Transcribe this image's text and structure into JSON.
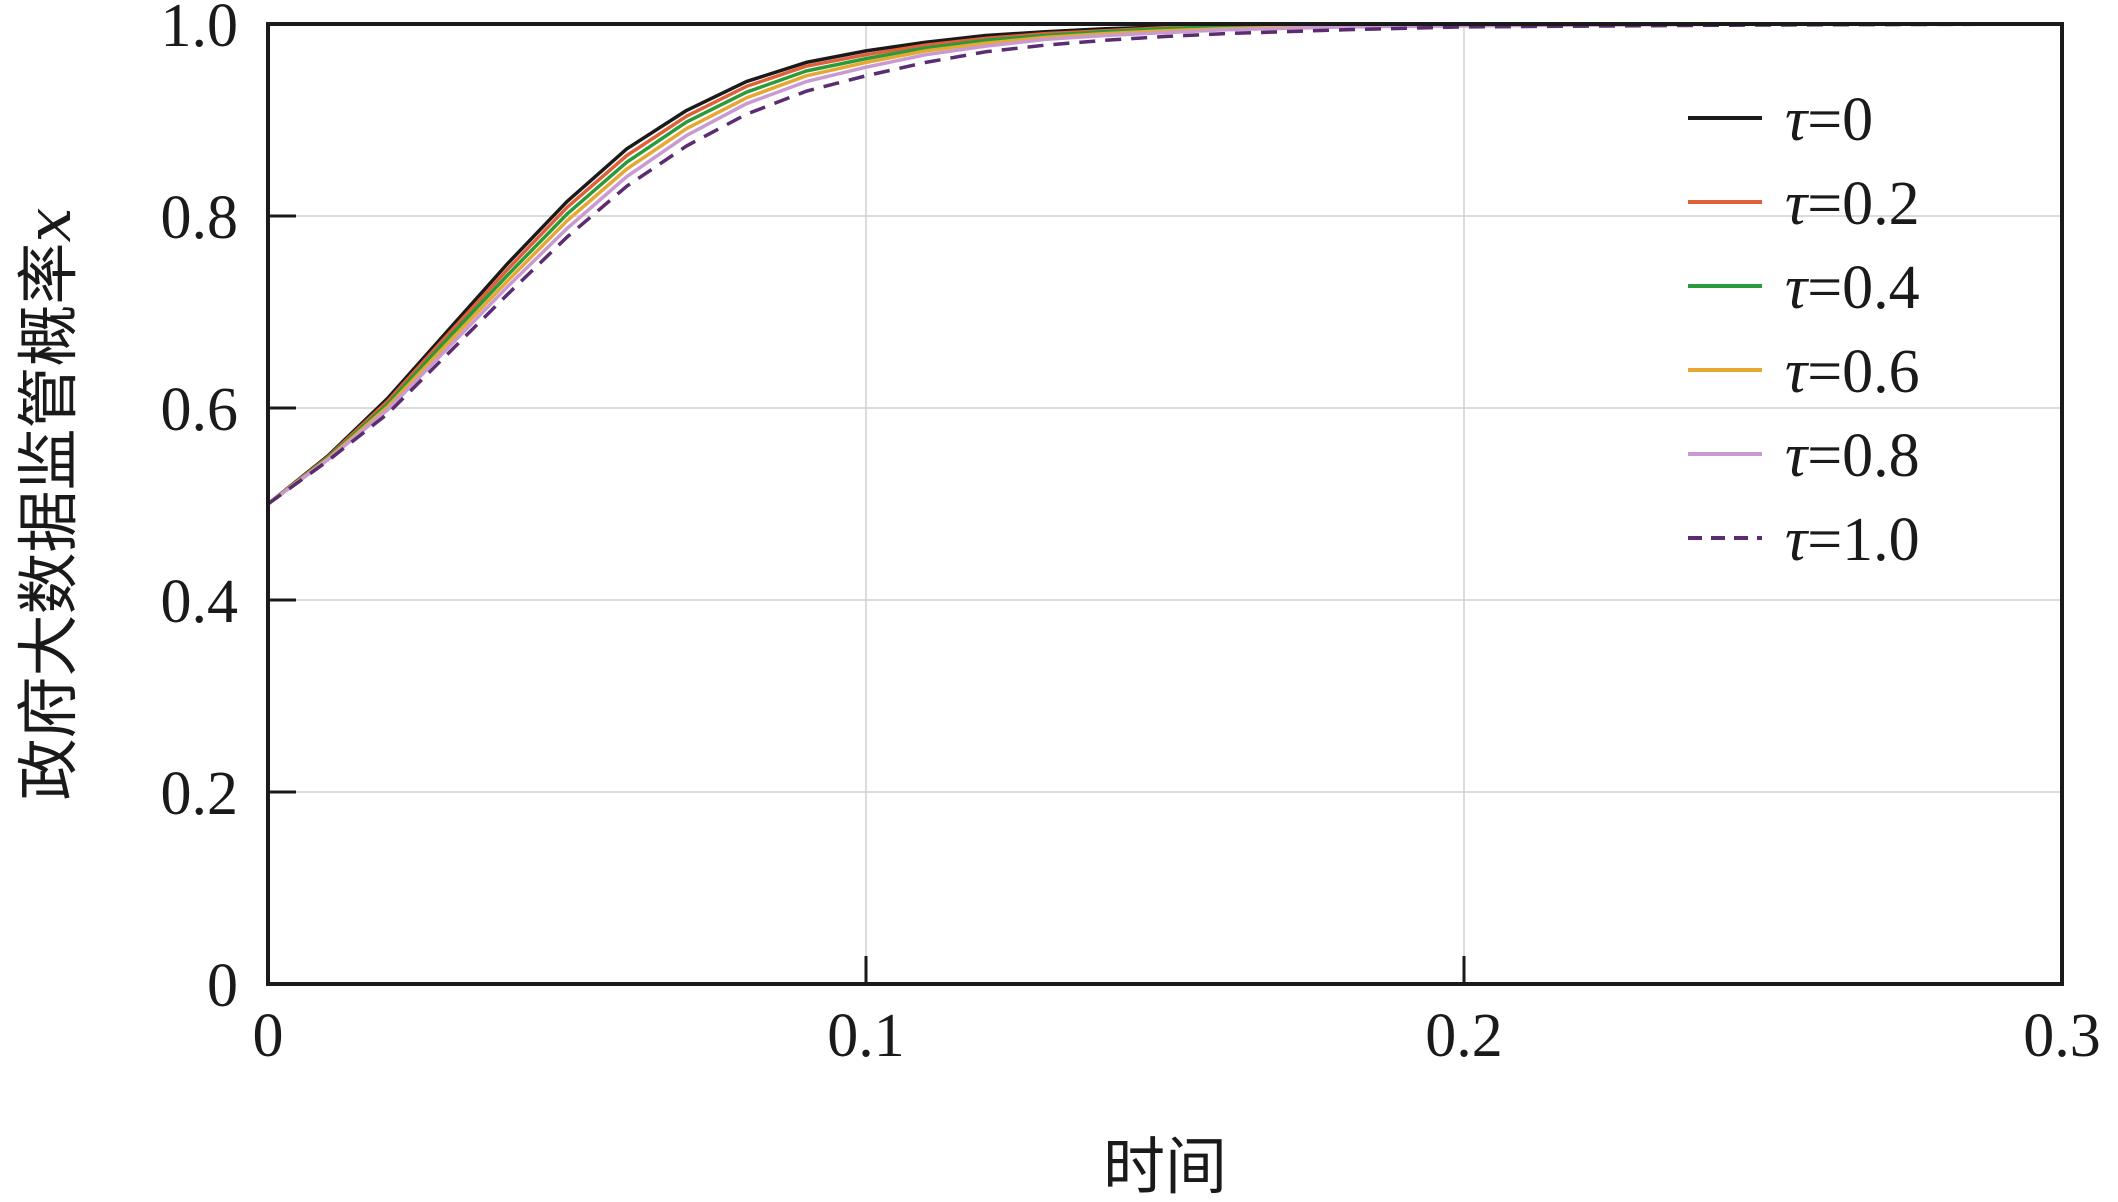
{
  "chart_data": {
    "type": "line",
    "title": "",
    "xlabel": "时间",
    "ylabel": "政府大数据监管概率",
    "ylabel_var": "x",
    "xlim": [
      0,
      0.3
    ],
    "ylim": [
      0,
      1.0
    ],
    "x_ticks": [
      0,
      0.1,
      0.2,
      0.3
    ],
    "x_tick_labels": [
      "0",
      "0.1",
      "0.2",
      "0.3"
    ],
    "y_ticks": [
      0,
      0.2,
      0.4,
      0.6,
      0.8,
      1.0
    ],
    "y_tick_labels": [
      "0",
      "0.2",
      "0.4",
      "0.6",
      "0.8",
      "1.0"
    ],
    "grid": true,
    "legend_position": "top-right",
    "x": [
      0,
      0.01,
      0.02,
      0.03,
      0.04,
      0.05,
      0.06,
      0.07,
      0.08,
      0.09,
      0.1,
      0.11,
      0.12,
      0.13,
      0.14,
      0.15,
      0.16,
      0.18,
      0.2,
      0.25,
      0.3
    ],
    "series": [
      {
        "name": "τ=0",
        "tau": "0",
        "color": "#1a1a1a",
        "dash": false,
        "values": [
          0.5,
          0.55,
          0.61,
          0.68,
          0.75,
          0.815,
          0.87,
          0.91,
          0.94,
          0.96,
          0.972,
          0.981,
          0.988,
          0.992,
          0.995,
          0.997,
          0.998,
          0.999,
          1.0,
          1.0,
          1.0
        ]
      },
      {
        "name": "τ=0.2",
        "tau": "0.2",
        "color": "#e0603a",
        "dash": false,
        "values": [
          0.5,
          0.549,
          0.607,
          0.676,
          0.744,
          0.809,
          0.863,
          0.904,
          0.935,
          0.956,
          0.968,
          0.978,
          0.985,
          0.99,
          0.993,
          0.996,
          0.997,
          0.999,
          0.999,
          1.0,
          1.0
        ]
      },
      {
        "name": "τ=0.4",
        "tau": "0.4",
        "color": "#2a9a3a",
        "dash": false,
        "values": [
          0.5,
          0.548,
          0.604,
          0.672,
          0.738,
          0.802,
          0.856,
          0.898,
          0.929,
          0.951,
          0.964,
          0.975,
          0.983,
          0.988,
          0.992,
          0.995,
          0.997,
          0.998,
          0.999,
          1.0,
          1.0
        ]
      },
      {
        "name": "τ=0.6",
        "tau": "0.6",
        "color": "#e6a832",
        "dash": false,
        "values": [
          0.5,
          0.547,
          0.601,
          0.667,
          0.732,
          0.795,
          0.849,
          0.891,
          0.923,
          0.946,
          0.96,
          0.972,
          0.98,
          0.986,
          0.99,
          0.993,
          0.995,
          0.998,
          0.999,
          1.0,
          1.0
        ]
      },
      {
        "name": "τ=0.8",
        "tau": "0.8",
        "color": "#c99ad1",
        "dash": false,
        "values": [
          0.5,
          0.546,
          0.598,
          0.662,
          0.726,
          0.787,
          0.841,
          0.884,
          0.917,
          0.94,
          0.955,
          0.968,
          0.977,
          0.984,
          0.988,
          0.991,
          0.994,
          0.997,
          0.998,
          1.0,
          1.0
        ]
      },
      {
        "name": "τ=1.0",
        "tau": "1.0",
        "color": "#5b2c6f",
        "dash": true,
        "values": [
          0.5,
          0.545,
          0.594,
          0.656,
          0.718,
          0.778,
          0.831,
          0.873,
          0.906,
          0.93,
          0.946,
          0.96,
          0.971,
          0.978,
          0.983,
          0.987,
          0.99,
          0.994,
          0.997,
          0.999,
          1.0
        ]
      }
    ]
  }
}
